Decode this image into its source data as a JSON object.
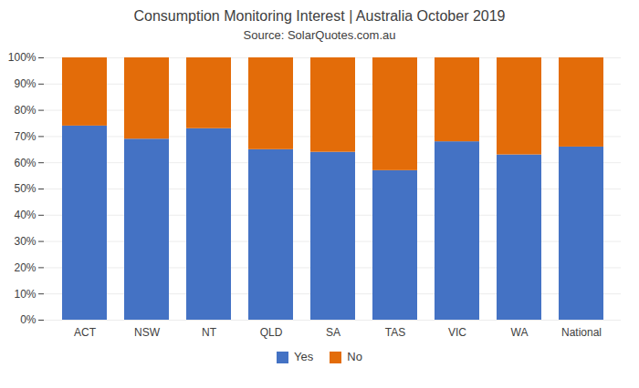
{
  "chart_data": {
    "type": "bar",
    "stacked": true,
    "title": "Consumption Monitoring Interest | Australia October 2019",
    "subtitle": "Source: SolarQuotes.com.au",
    "categories": [
      "ACT",
      "NSW",
      "NT",
      "QLD",
      "SA",
      "TAS",
      "VIC",
      "WA",
      "National"
    ],
    "series": [
      {
        "name": "Yes",
        "color": "#4472C4",
        "values": [
          74,
          69,
          73,
          65,
          64,
          57,
          68,
          63,
          66
        ]
      },
      {
        "name": "No",
        "color": "#E36C09",
        "values": [
          26,
          31,
          27,
          35,
          36,
          43,
          32,
          37,
          34
        ]
      }
    ],
    "ylim": [
      0,
      100
    ],
    "yticks": [
      {
        "value": 0,
        "label": "0%"
      },
      {
        "value": 10,
        "label": "10%"
      },
      {
        "value": 20,
        "label": "20%"
      },
      {
        "value": 30,
        "label": "30%"
      },
      {
        "value": 40,
        "label": "40%"
      },
      {
        "value": 50,
        "label": "50%"
      },
      {
        "value": 60,
        "label": "60%"
      },
      {
        "value": 70,
        "label": "70%"
      },
      {
        "value": 80,
        "label": "80%"
      },
      {
        "value": 90,
        "label": "90%"
      },
      {
        "value": 100,
        "label": "100%"
      }
    ],
    "grid": true,
    "legend": "bottom"
  }
}
